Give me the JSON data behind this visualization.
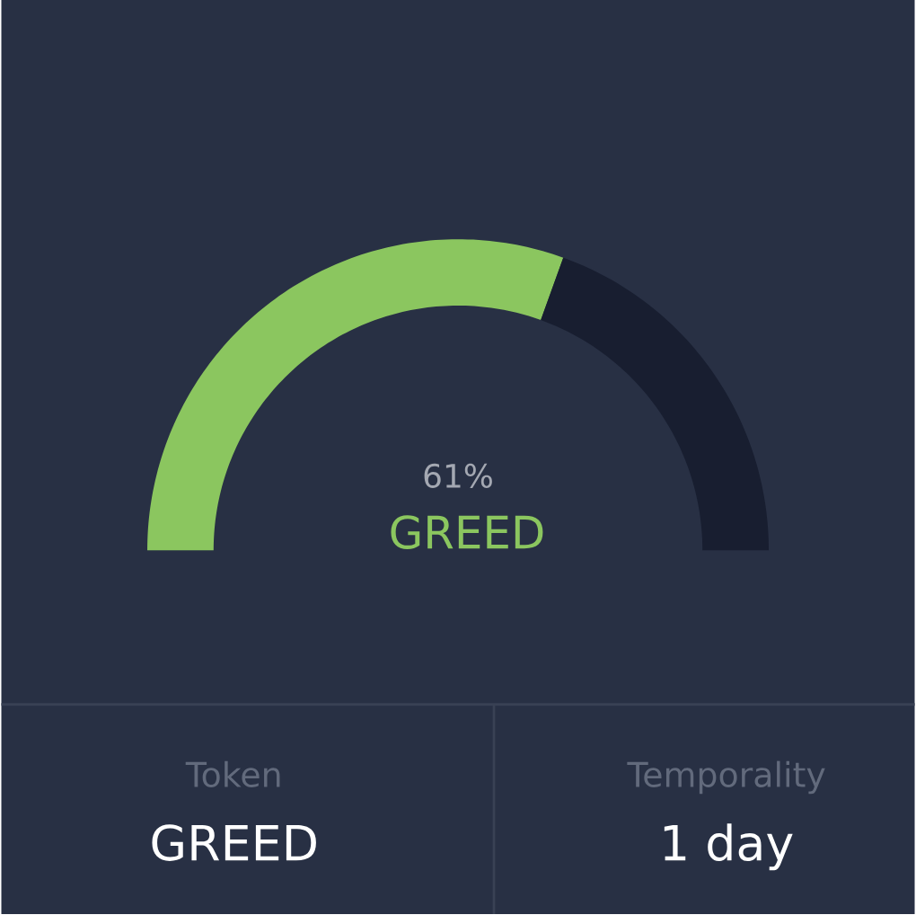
{
  "chart_data": {
    "type": "donut",
    "categories": [
      "GREED",
      null
    ],
    "values": [
      61,
      39
    ],
    "colors": [
      "#8bc65f",
      "#181e30"
    ],
    "value_labels": [
      "61%",
      null
    ],
    "annotations": [
      "Token",
      "GREED",
      "Temporality",
      "1 day"
    ]
  }
}
